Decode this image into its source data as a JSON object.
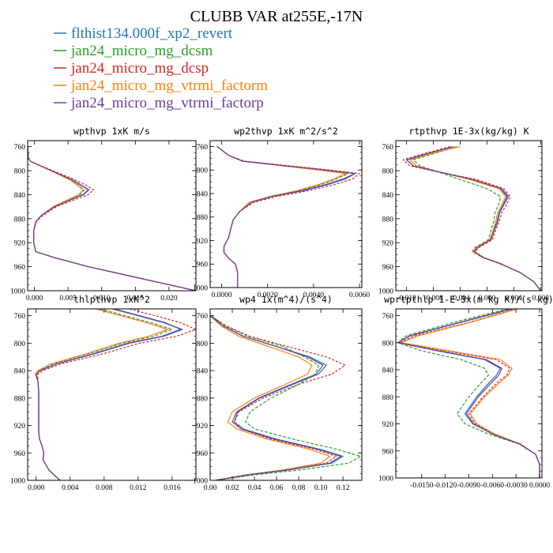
{
  "title": "CLUBB VAR at255E,-17N",
  "legend": [
    {
      "label": "flthist134.000f_xp2_revert",
      "color": "#1f77b4",
      "style": "solid"
    },
    {
      "label": "jan24_micro_mg_dcsm",
      "color": "#2ca02c",
      "style": "dashed"
    },
    {
      "label": "jan24_micro_mg_dcsp",
      "color": "#d62728",
      "style": "dashed"
    },
    {
      "label": "jan24_micro_mg_vtrmi_factorm",
      "color": "#ff7f0e",
      "style": "solid"
    },
    {
      "label": "jan24_micro_mg_vtrmi_factorp",
      "color": "#6a3d9a",
      "style": "solid"
    }
  ],
  "chart_data": [
    {
      "type": "line",
      "title": "wpthvp  1xK m/s",
      "xlim": [
        -0.001,
        0.024
      ],
      "ylim": [
        750,
        1000
      ],
      "y_reversed": true,
      "xticks": [
        "0.000",
        "0.005",
        "0.010",
        "0.015",
        "0.020"
      ],
      "xtick_values": [
        0,
        0.005,
        0.01,
        0.015,
        0.02
      ],
      "yticks": [
        760,
        800,
        840,
        880,
        920,
        960,
        1000
      ],
      "y": [
        760,
        780,
        785,
        800,
        815,
        825,
        832,
        840,
        850,
        860,
        875,
        885,
        900,
        920,
        935,
        945,
        960,
        975,
        990,
        1000
      ],
      "series": [
        [
          -0.001,
          -0.0009,
          -0.0005,
          0.0025,
          0.0055,
          0.007,
          0.008,
          0.0072,
          0.005,
          0.003,
          0.001,
          0.0002,
          -0.0001,
          -0.0001,
          0.0002,
          0.003,
          0.008,
          0.014,
          0.02,
          0.024
        ],
        [
          -0.001,
          -0.0009,
          -0.0005,
          0.0025,
          0.0053,
          0.0066,
          0.0074,
          0.0068,
          0.0048,
          0.0029,
          0.001,
          0.0002,
          -0.0001,
          -0.0001,
          0.0002,
          0.003,
          0.008,
          0.014,
          0.02,
          0.024
        ],
        [
          -0.001,
          -0.0009,
          -0.0005,
          0.0027,
          0.006,
          0.0078,
          0.0088,
          0.008,
          0.0056,
          0.0033,
          0.0012,
          0.0003,
          -0.0001,
          -0.0001,
          0.0002,
          0.0031,
          0.0081,
          0.0141,
          0.02,
          0.024
        ],
        [
          -0.001,
          -0.0009,
          -0.0005,
          0.0024,
          0.0052,
          0.0065,
          0.0072,
          0.0066,
          0.0047,
          0.0028,
          0.001,
          0.0002,
          -0.0001,
          -0.0001,
          0.0002,
          0.003,
          0.008,
          0.014,
          0.02,
          0.024
        ],
        [
          -0.001,
          -0.0009,
          -0.0005,
          0.0025,
          0.0056,
          0.0071,
          0.0081,
          0.0073,
          0.0051,
          0.003,
          0.001,
          0.0002,
          -0.0001,
          -0.0001,
          0.0002,
          0.003,
          0.008,
          0.014,
          0.02,
          0.024
        ]
      ]
    },
    {
      "type": "line",
      "title": "wp2thvp  1xK m^2/s^2",
      "xlim": [
        -0.0005,
        0.0061
      ],
      "ylim": [
        750,
        1000
      ],
      "y_reversed": true,
      "xticks": [
        "0.0000",
        "0.0020",
        "0.0040",
        "0.0060"
      ],
      "xtick_values": [
        0,
        0.002,
        0.004,
        0.006
      ],
      "yticks": [
        760,
        800,
        840,
        880,
        920,
        960,
        1000
      ],
      "y": [
        760,
        775,
        785,
        800,
        806,
        815,
        825,
        835,
        845,
        855,
        870,
        885,
        900,
        915,
        930,
        940,
        950,
        960,
        975,
        990,
        1000
      ],
      "series": [
        [
          -0.0002,
          0.0003,
          0.0009,
          0.0045,
          0.0058,
          0.0054,
          0.0046,
          0.0036,
          0.0022,
          0.0013,
          0.0008,
          0.0005,
          0.0004,
          0.0003,
          0.0001,
          0.0001,
          0.0003,
          0.0006,
          0.0007,
          0.0007,
          0.0007
        ],
        [
          -0.0002,
          0.0003,
          0.0009,
          0.0043,
          0.0055,
          0.005,
          0.0043,
          0.0034,
          0.0021,
          0.0013,
          0.0008,
          0.0005,
          0.0004,
          0.0003,
          0.0001,
          0.0001,
          0.0003,
          0.0006,
          0.0007,
          0.0007,
          0.0007
        ],
        [
          -0.0002,
          0.0003,
          0.001,
          0.0047,
          0.006,
          0.0057,
          0.0049,
          0.0038,
          0.0024,
          0.0014,
          0.0008,
          0.0005,
          0.0004,
          0.0003,
          0.0001,
          0.0001,
          0.0003,
          0.0006,
          0.0007,
          0.0007,
          0.0007
        ],
        [
          -0.0002,
          0.0003,
          0.0009,
          0.0042,
          0.0054,
          0.0049,
          0.0042,
          0.0033,
          0.0021,
          0.0012,
          0.0008,
          0.0005,
          0.0004,
          0.0003,
          0.0001,
          0.0001,
          0.0003,
          0.0006,
          0.0007,
          0.0007,
          0.0007
        ],
        [
          -0.0002,
          0.0003,
          0.0009,
          0.0045,
          0.0058,
          0.0053,
          0.0045,
          0.0035,
          0.0022,
          0.0013,
          0.0008,
          0.0005,
          0.0004,
          0.0003,
          0.0001,
          0.0001,
          0.0003,
          0.0006,
          0.0007,
          0.0007,
          0.0007
        ]
      ]
    },
    {
      "type": "line",
      "title": "rtpthvp  1E-3x(kg/kg) K",
      "xlim": [
        -0.0136,
        0.0082
      ],
      "ylim": [
        750,
        1000
      ],
      "y_reversed": true,
      "xticks": [
        "-0.012",
        "-0.008",
        "-0.004",
        "0.000",
        "0.004",
        "0.008"
      ],
      "xtick_values": [
        -0.012,
        -0.008,
        -0.004,
        0,
        0.004,
        0.008
      ],
      "yticks": [
        760,
        800,
        840,
        880,
        920,
        960,
        1000
      ],
      "y": [
        760,
        772,
        782,
        792,
        800,
        815,
        830,
        843,
        855,
        870,
        885,
        900,
        915,
        928,
        935,
        945,
        955,
        970,
        985,
        1000
      ],
      "series": [
        [
          -0.005,
          -0.009,
          -0.012,
          -0.011,
          -0.008,
          -0.002,
          0.002,
          0.003,
          0.0025,
          0.0018,
          0.0015,
          0.001,
          0.0005,
          -0.0015,
          -0.002,
          -0.0005,
          0.002,
          0.005,
          0.007,
          0.008
        ],
        [
          -0.0045,
          -0.008,
          -0.011,
          -0.01,
          -0.0078,
          -0.004,
          0.0,
          0.002,
          0.0018,
          0.0012,
          0.001,
          0.0006,
          0.0002,
          -0.0018,
          -0.0022,
          -0.0006,
          0.0019,
          0.005,
          0.007,
          0.008
        ],
        [
          -0.0055,
          -0.0095,
          -0.0125,
          -0.0115,
          -0.0082,
          -0.0015,
          0.0025,
          0.0035,
          0.003,
          0.0022,
          0.0018,
          0.0013,
          0.0008,
          -0.0012,
          -0.0018,
          -0.0004,
          0.0021,
          0.005,
          0.007,
          0.008
        ],
        [
          -0.004,
          -0.0085,
          -0.0115,
          -0.0105,
          -0.0079,
          -0.0025,
          0.0018,
          0.0028,
          0.0023,
          0.0016,
          0.0013,
          0.0009,
          0.0004,
          -0.0016,
          -0.0021,
          -0.0005,
          0.002,
          0.005,
          0.007,
          0.008
        ],
        [
          -0.005,
          -0.009,
          -0.012,
          -0.011,
          -0.008,
          -0.002,
          0.0022,
          0.0032,
          0.0026,
          0.0019,
          0.0016,
          0.0011,
          0.0006,
          -0.0014,
          -0.0019,
          -0.0005,
          0.002,
          0.005,
          0.007,
          0.008
        ]
      ]
    },
    {
      "type": "line",
      "title": "thlpthvp  1xK^2",
      "xlim": [
        -0.001,
        0.0188
      ],
      "ylim": [
        750,
        1000
      ],
      "y_reversed": true,
      "xticks": [
        "0.000",
        "0.004",
        "0.008",
        "0.012",
        "0.016"
      ],
      "xtick_values": [
        0,
        0.004,
        0.008,
        0.012,
        0.016
      ],
      "yticks": [
        760,
        800,
        840,
        880,
        920,
        960,
        1000
      ],
      "y": [
        750,
        760,
        770,
        780,
        790,
        800,
        815,
        830,
        840,
        845,
        855,
        870,
        890,
        910,
        930,
        940,
        950,
        960,
        970,
        985,
        1000
      ],
      "series": [
        [
          0.009,
          0.012,
          0.015,
          0.0172,
          0.015,
          0.011,
          0.007,
          0.0025,
          0.0005,
          0.0,
          0.0002,
          0.0003,
          0.0003,
          0.0003,
          0.0003,
          0.0004,
          0.0007,
          0.0009,
          0.0008,
          0.0015,
          0.0028
        ],
        [
          0.0075,
          0.0105,
          0.0135,
          0.016,
          0.0138,
          0.0102,
          0.0062,
          0.002,
          0.0003,
          -0.0001,
          0.0002,
          0.0003,
          0.0003,
          0.0003,
          0.0003,
          0.0004,
          0.0007,
          0.0009,
          0.0008,
          0.0015,
          0.0028
        ],
        [
          0.011,
          0.014,
          0.017,
          0.0188,
          0.0165,
          0.0122,
          0.008,
          0.003,
          0.0008,
          0.0002,
          0.0002,
          0.0003,
          0.0003,
          0.0003,
          0.0003,
          0.0004,
          0.0007,
          0.0009,
          0.0008,
          0.0015,
          0.0028
        ],
        [
          0.007,
          0.01,
          0.013,
          0.0155,
          0.0132,
          0.0098,
          0.006,
          0.0018,
          0.0002,
          -0.0001,
          0.0002,
          0.0003,
          0.0003,
          0.0003,
          0.0003,
          0.0004,
          0.0007,
          0.0009,
          0.0008,
          0.0015,
          0.0028
        ],
        [
          0.0092,
          0.0122,
          0.0152,
          0.017,
          0.0148,
          0.0108,
          0.0068,
          0.0024,
          0.0005,
          0.0,
          0.0002,
          0.0003,
          0.0003,
          0.0003,
          0.0003,
          0.0004,
          0.0007,
          0.0009,
          0.0008,
          0.0015,
          0.0028
        ]
      ]
    },
    {
      "type": "line",
      "title": "wp4  1x(m^4)/(s^4)",
      "xlim": [
        0,
        0.137
      ],
      "ylim": [
        750,
        1000
      ],
      "y_reversed": true,
      "xticks": [
        "0.00",
        "0.02",
        "0.04",
        "0.06",
        "0.08",
        "0.10",
        "0.12"
      ],
      "xtick_values": [
        0,
        0.02,
        0.04,
        0.06,
        0.08,
        0.1,
        0.12
      ],
      "yticks": [
        760,
        800,
        840,
        880,
        920,
        960,
        1000
      ],
      "y": [
        760,
        775,
        790,
        805,
        820,
        832,
        845,
        860,
        880,
        900,
        915,
        925,
        940,
        955,
        965,
        975,
        985,
        992,
        1000
      ],
      "series": [
        [
          0.0,
          0.012,
          0.03,
          0.06,
          0.09,
          0.105,
          0.098,
          0.075,
          0.045,
          0.025,
          0.022,
          0.03,
          0.06,
          0.1,
          0.12,
          0.11,
          0.07,
          0.035,
          0.005
        ],
        [
          0.001,
          0.014,
          0.034,
          0.066,
          0.085,
          0.098,
          0.095,
          0.08,
          0.055,
          0.036,
          0.032,
          0.04,
          0.075,
          0.115,
          0.136,
          0.125,
          0.08,
          0.04,
          0.006
        ],
        [
          0.0,
          0.015,
          0.036,
          0.07,
          0.105,
          0.122,
          0.11,
          0.08,
          0.048,
          0.026,
          0.022,
          0.028,
          0.055,
          0.095,
          0.114,
          0.105,
          0.068,
          0.033,
          0.005
        ],
        [
          0.0,
          0.01,
          0.026,
          0.053,
          0.08,
          0.092,
          0.088,
          0.068,
          0.04,
          0.02,
          0.016,
          0.024,
          0.052,
          0.09,
          0.108,
          0.1,
          0.065,
          0.032,
          0.004
        ],
        [
          0.0,
          0.012,
          0.03,
          0.06,
          0.088,
          0.102,
          0.096,
          0.073,
          0.044,
          0.024,
          0.02,
          0.028,
          0.058,
          0.098,
          0.118,
          0.108,
          0.069,
          0.034,
          0.005
        ]
      ]
    },
    {
      "type": "line",
      "title": "wprtpthlp  1-E-3x(m kg K)/(s kg)",
      "xlim": [
        -0.0183,
        0.0003
      ],
      "ylim": [
        750,
        1000
      ],
      "y_reversed": true,
      "xticks": [
        "-0.0150",
        "-0.0120",
        "-0.0090",
        "-0.0060",
        "-0.0030",
        "0.0000"
      ],
      "xtick_values": [
        -0.015,
        -0.012,
        -0.009,
        -0.006,
        -0.003,
        0
      ],
      "yticks": [
        760,
        800,
        840,
        880,
        920,
        960,
        1000
      ],
      "y": [
        750,
        770,
        790,
        800,
        812,
        825,
        838,
        848,
        860,
        880,
        905,
        920,
        935,
        950,
        965,
        980,
        990,
        1000
      ],
      "series": [
        [
          -0.0035,
          -0.01,
          -0.0165,
          -0.018,
          -0.013,
          -0.007,
          -0.005,
          -0.0055,
          -0.0065,
          -0.008,
          -0.0095,
          -0.0085,
          -0.006,
          -0.0025,
          -0.0005,
          0.0,
          0.0,
          0.0
        ],
        [
          -0.004,
          -0.011,
          -0.017,
          -0.018,
          -0.015,
          -0.01,
          -0.007,
          -0.0065,
          -0.0075,
          -0.009,
          -0.0105,
          -0.0095,
          -0.0065,
          -0.0026,
          -0.0005,
          0.0,
          0.0,
          0.0
        ],
        [
          -0.003,
          -0.009,
          -0.016,
          -0.0178,
          -0.012,
          -0.0055,
          -0.0038,
          -0.0042,
          -0.0055,
          -0.0072,
          -0.009,
          -0.0082,
          -0.0058,
          -0.0024,
          -0.0005,
          0.0,
          0.0,
          0.0
        ],
        [
          -0.0028,
          -0.0088,
          -0.0155,
          -0.0176,
          -0.0115,
          -0.005,
          -0.0035,
          -0.004,
          -0.0052,
          -0.007,
          -0.0088,
          -0.008,
          -0.0057,
          -0.0024,
          -0.0005,
          0.0,
          0.0,
          0.0
        ],
        [
          -0.0036,
          -0.0102,
          -0.0166,
          -0.018,
          -0.0128,
          -0.0068,
          -0.0048,
          -0.0052,
          -0.0062,
          -0.0078,
          -0.0093,
          -0.0084,
          -0.006,
          -0.0025,
          -0.0005,
          0.0,
          0.0,
          0.0
        ]
      ]
    }
  ]
}
